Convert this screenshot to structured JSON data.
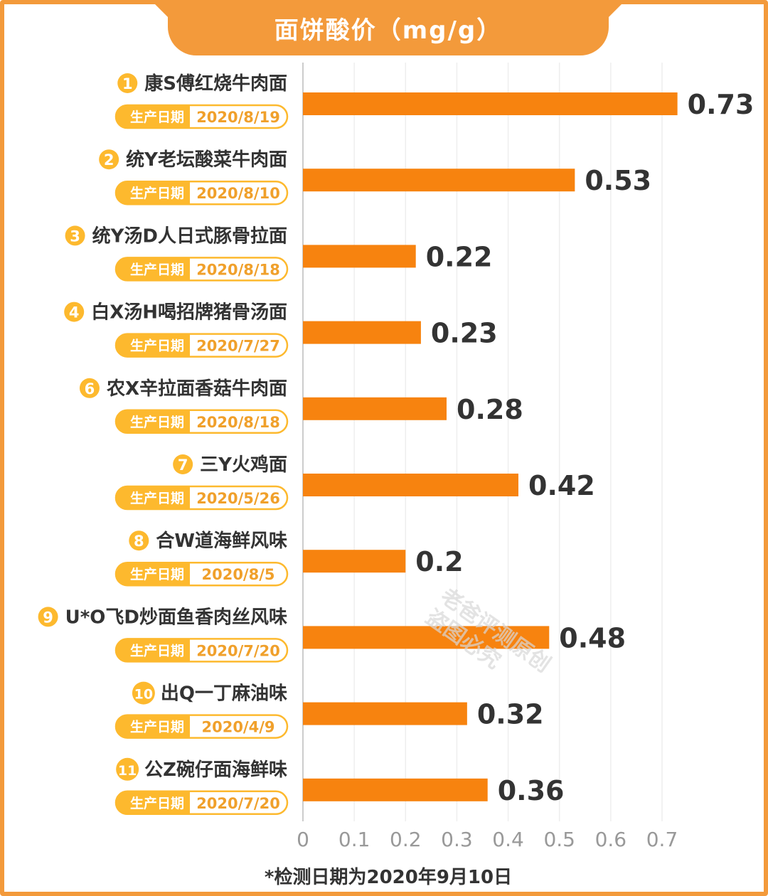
{
  "title": "面饼酸价（mg/g）",
  "footnote": "*检测日期为2020年9月10日",
  "watermark": [
    "老爸评测原创",
    "盗图必究"
  ],
  "colors": {
    "accent": "#f39a3b",
    "bar": "#f7830f",
    "badge_bg": "#fdb92e",
    "pill_text": "#f0a02b",
    "text": "#333333",
    "axis_text": "#999999"
  },
  "chart_data": {
    "type": "bar",
    "orientation": "horizontal",
    "title": "面饼酸价（mg/g）",
    "xlim": [
      0,
      0.7
    ],
    "xticks": [
      "0",
      "0.1",
      "0.2",
      "0.3",
      "0.4",
      "0.5",
      "0.6",
      "0.7"
    ],
    "grid": true,
    "date_label": "生产日期",
    "items": [
      {
        "rank": "1",
        "name": "康S傅红烧牛肉面",
        "date": "2020/8/19",
        "value": 0.73,
        "label": "0.73"
      },
      {
        "rank": "2",
        "name": "统Y老坛酸菜牛肉面",
        "date": "2020/8/10",
        "value": 0.53,
        "label": "0.53"
      },
      {
        "rank": "3",
        "name": "统Y汤D人日式豚骨拉面",
        "date": "2020/8/18",
        "value": 0.22,
        "label": "0.22"
      },
      {
        "rank": "4",
        "name": "白X汤H喝招牌猪骨汤面",
        "date": "2020/7/27",
        "value": 0.23,
        "label": "0.23"
      },
      {
        "rank": "6",
        "name": "农X辛拉面香菇牛肉面",
        "date": "2020/8/18",
        "value": 0.28,
        "label": "0.28"
      },
      {
        "rank": "7",
        "name": "三Y火鸡面",
        "date": "2020/5/26",
        "value": 0.42,
        "label": "0.42"
      },
      {
        "rank": "8",
        "name": "合W道海鲜风味",
        "date": "2020/8/5",
        "value": 0.2,
        "label": "0.2"
      },
      {
        "rank": "9",
        "name": "U*O飞D炒面鱼香肉丝风味",
        "date": "2020/7/20",
        "value": 0.48,
        "label": "0.48"
      },
      {
        "rank": "10",
        "name": "出Q一丁麻油味",
        "date": "2020/4/9",
        "value": 0.32,
        "label": "0.32"
      },
      {
        "rank": "11",
        "name": "公Z碗仔面海鲜味",
        "date": "2020/7/20",
        "value": 0.36,
        "label": "0.36"
      }
    ]
  }
}
